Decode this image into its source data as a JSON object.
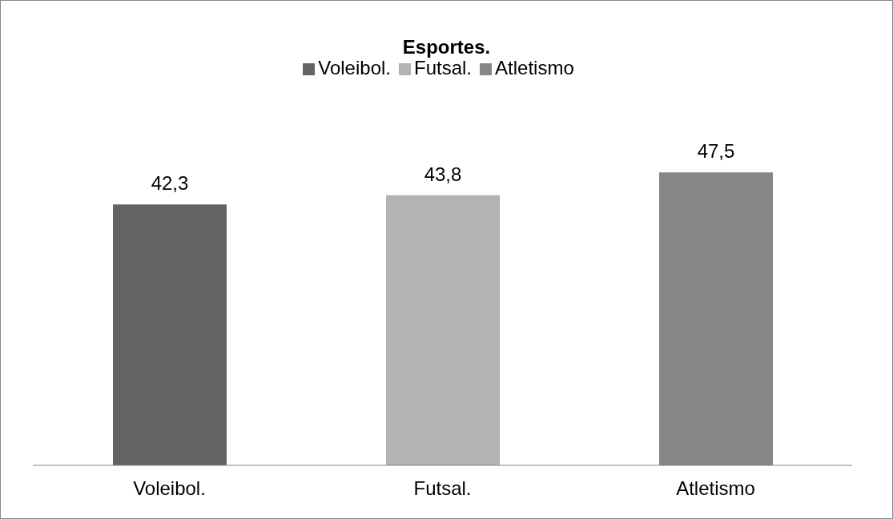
{
  "chart_data": {
    "type": "bar",
    "title": "Esportes.",
    "categories": [
      "Voleibol.",
      "Futsal.",
      "Atletismo"
    ],
    "series": [
      {
        "name": "Voleibol.",
        "color": "#636363",
        "values": [
          42.3,
          null,
          null
        ],
        "value_labels": [
          "42,3",
          null,
          null
        ]
      },
      {
        "name": "Futsal.",
        "color": "#b3b3b3",
        "values": [
          null,
          43.8,
          null
        ],
        "value_labels": [
          null,
          "43,8",
          null
        ]
      },
      {
        "name": "Atletismo",
        "color": "#878787",
        "values": [
          null,
          null,
          47.5
        ],
        "value_labels": [
          null,
          null,
          "47,5"
        ]
      }
    ],
    "grid": false,
    "legend": "top"
  }
}
